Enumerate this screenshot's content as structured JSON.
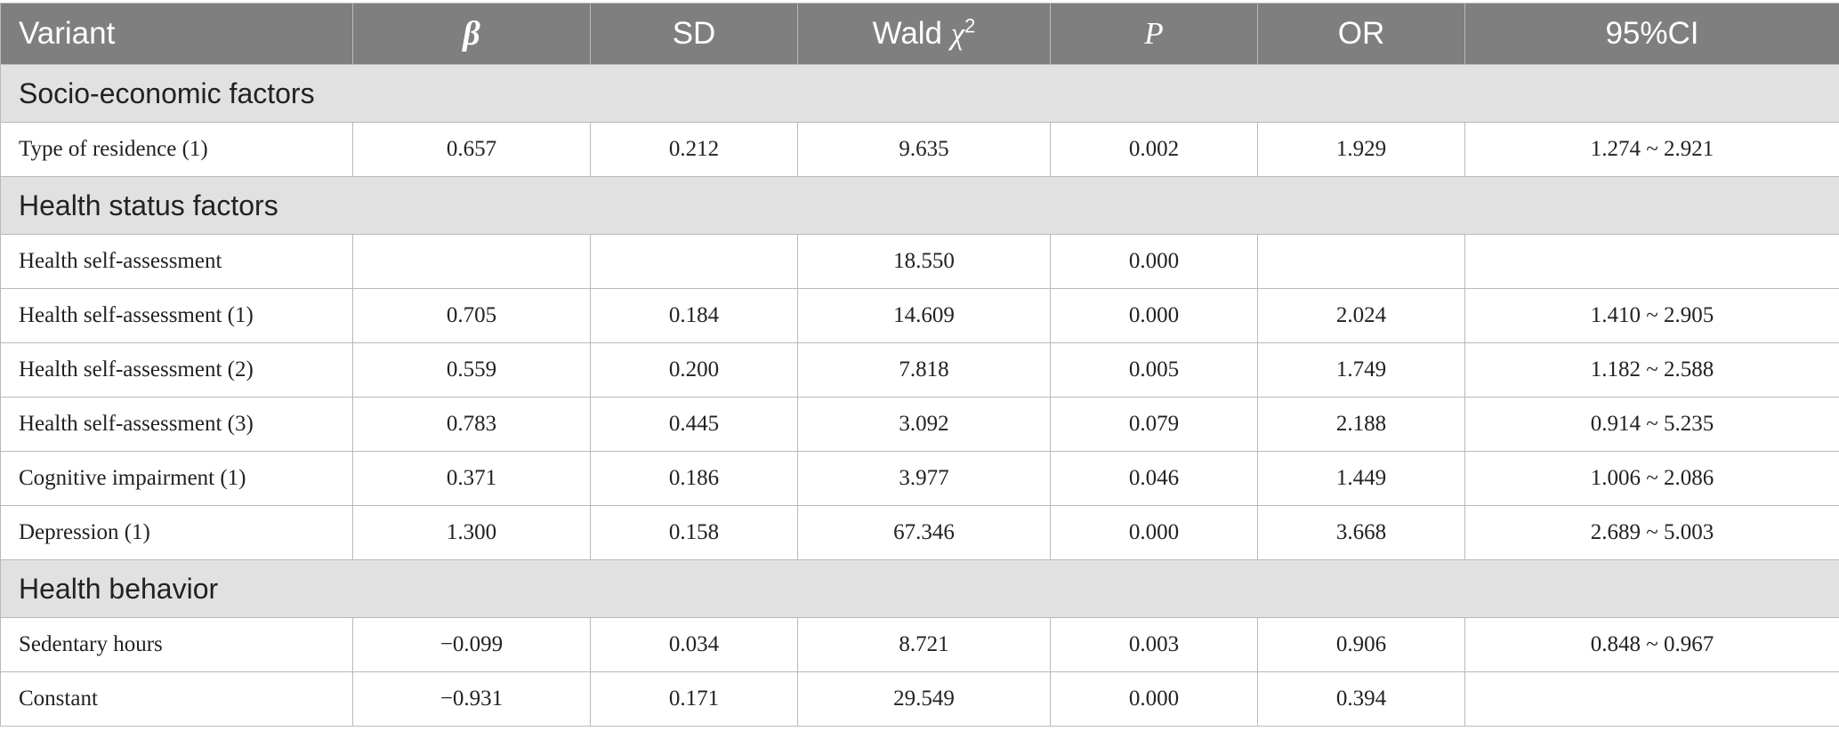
{
  "table": {
    "headers": {
      "variant": "Variant",
      "beta": "β",
      "sd": "SD",
      "wald_text": "Wald",
      "wald_chi": "χ",
      "wald_sup": "2",
      "p": "P",
      "or": "OR",
      "ci": "95%CI"
    },
    "sections": [
      {
        "title": "Socio-economic factors",
        "rows": [
          {
            "variant": "Type of residence (1)",
            "beta": "0.657",
            "sd": "0.212",
            "wald": "9.635",
            "p": "0.002",
            "or": "1.929",
            "ci": "1.274 ~ 2.921"
          }
        ]
      },
      {
        "title": "Health status factors",
        "rows": [
          {
            "variant": "Health self-assessment",
            "beta": "",
            "sd": "",
            "wald": "18.550",
            "p": "0.000",
            "or": "",
            "ci": ""
          },
          {
            "variant": "Health self-assessment (1)",
            "beta": "0.705",
            "sd": "0.184",
            "wald": "14.609",
            "p": "0.000",
            "or": "2.024",
            "ci": "1.410 ~ 2.905"
          },
          {
            "variant": "Health self-assessment (2)",
            "beta": "0.559",
            "sd": "0.200",
            "wald": "7.818",
            "p": "0.005",
            "or": "1.749",
            "ci": "1.182 ~ 2.588"
          },
          {
            "variant": "Health self-assessment (3)",
            "beta": "0.783",
            "sd": "0.445",
            "wald": "3.092",
            "p": "0.079",
            "or": "2.188",
            "ci": "0.914 ~ 5.235"
          },
          {
            "variant": "Cognitive impairment (1)",
            "beta": "0.371",
            "sd": "0.186",
            "wald": "3.977",
            "p": "0.046",
            "or": "1.449",
            "ci": "1.006 ~ 2.086"
          },
          {
            "variant": "Depression (1)",
            "beta": "1.300",
            "sd": "0.158",
            "wald": "67.346",
            "p": "0.000",
            "or": "3.668",
            "ci": "2.689 ~ 5.003"
          }
        ]
      },
      {
        "title": "Health behavior",
        "rows": [
          {
            "variant": "Sedentary hours",
            "beta": "−0.099",
            "sd": "0.034",
            "wald": "8.721",
            "p": "0.003",
            "or": "0.906",
            "ci": "0.848 ~ 0.967"
          },
          {
            "variant": "Constant",
            "beta": "−0.931",
            "sd": "0.171",
            "wald": "29.549",
            "p": "0.000",
            "or": "0.394",
            "ci": ""
          }
        ]
      }
    ]
  }
}
